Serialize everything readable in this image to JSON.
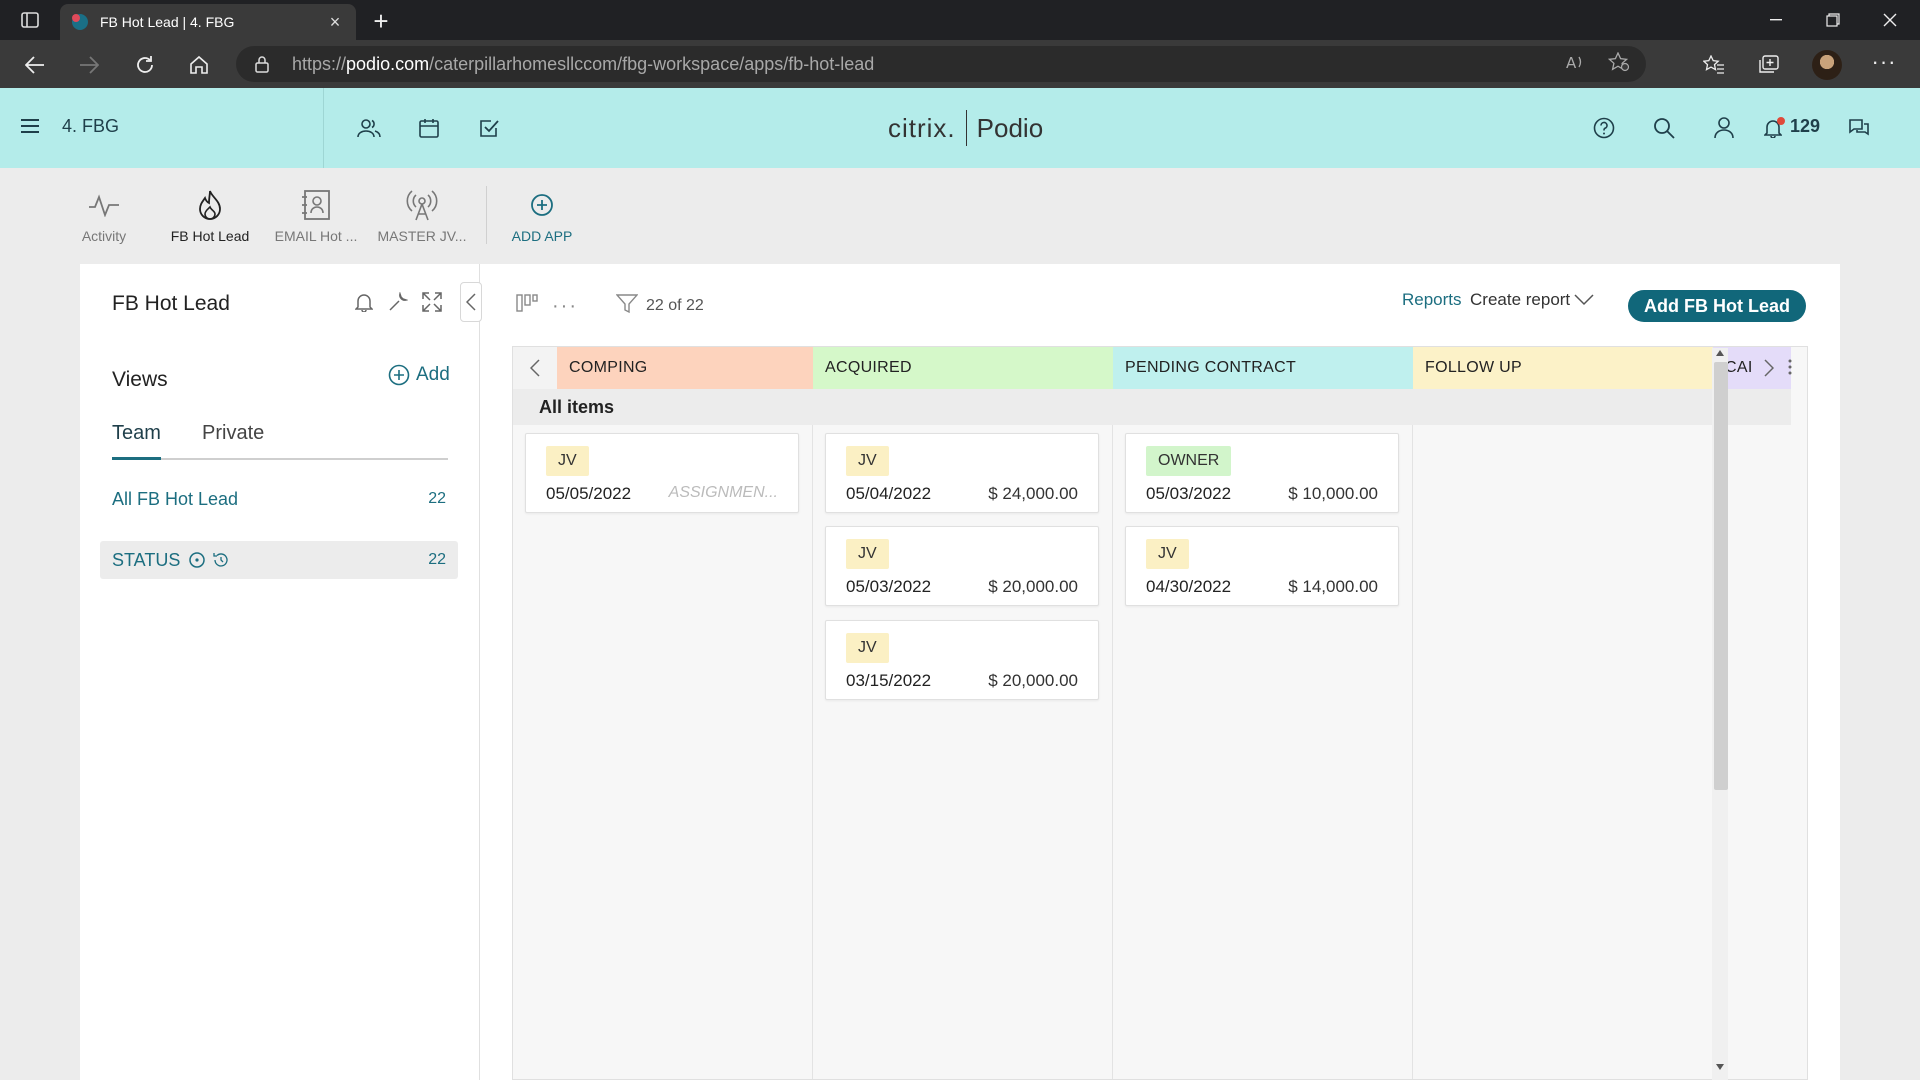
{
  "browser": {
    "tab_title": "FB Hot Lead | 4. FBG",
    "url_prefix": "https://",
    "url_host": "podio.com",
    "url_path": "/caterpillarhomesllccom/fbg-workspace/apps/fb-hot-lead"
  },
  "header": {
    "workspace": "4. FBG",
    "brand_left": "citrix.",
    "brand_right": "Podio",
    "notification_count": "129"
  },
  "apps": [
    {
      "label": "Activity",
      "icon": "activity-icon"
    },
    {
      "label": "FB Hot Lead",
      "icon": "flame-icon"
    },
    {
      "label": "EMAIL Hot ...",
      "icon": "contact-card-icon"
    },
    {
      "label": "MASTER JV...",
      "icon": "broadcast-icon"
    },
    {
      "label": "ADD APP",
      "icon": "plus-circle-icon"
    }
  ],
  "sidebar": {
    "title": "FB Hot Lead",
    "views_label": "Views",
    "add_label": "Add",
    "tabs": [
      "Team",
      "Private"
    ],
    "views": [
      {
        "label": "All FB Hot Lead",
        "count": "22"
      },
      {
        "label": "STATUS",
        "count": "22"
      }
    ]
  },
  "toolbar": {
    "filter_count": "22 of 22",
    "reports": "Reports",
    "create_report": "Create report",
    "add_button": "Add FB Hot Lead"
  },
  "board": {
    "group_label": "All items",
    "columns": [
      {
        "title": "COMPING",
        "color": "#fdd3bd"
      },
      {
        "title": "ACQUIRED",
        "color": "#d5f8c9"
      },
      {
        "title": "PENDING CONTRACT",
        "color": "#bff0ee"
      },
      {
        "title": "FOLLOW UP",
        "color": "#fcf2c8"
      },
      {
        "title": "CAI",
        "color": "#e4dcf9"
      }
    ],
    "cards": {
      "comping": [
        {
          "tag": "JV",
          "date": "05/05/2022",
          "amount": "ASSIGNMEN..."
        }
      ],
      "acquired": [
        {
          "tag": "JV",
          "date": "05/04/2022",
          "amount": "$ 24,000.00"
        },
        {
          "tag": "JV",
          "date": "05/03/2022",
          "amount": "$ 20,000.00"
        },
        {
          "tag": "JV",
          "date": "03/15/2022",
          "amount": "$ 20,000.00"
        }
      ],
      "pending": [
        {
          "tag": "OWNER",
          "date": "05/03/2022",
          "amount": "$ 10,000.00"
        },
        {
          "tag": "JV",
          "date": "04/30/2022",
          "amount": "$ 14,000.00"
        }
      ]
    },
    "tag_colors": {
      "JV": "#fbf0c4",
      "OWNER": "#d2f5cb"
    }
  }
}
